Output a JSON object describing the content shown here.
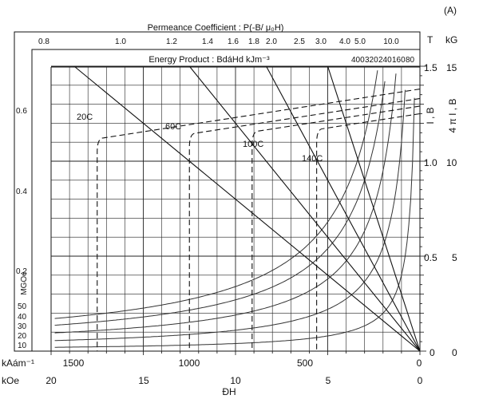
{
  "figure_label": "(A)",
  "chart_data": {
    "type": "line",
    "top_axis": {
      "title": "Permeance Coefficient : P(-B/ μ₀H)",
      "ticks": [
        "0.8",
        "1.0",
        "1.2",
        "1.4",
        "1.6",
        "1.8",
        "2.0",
        "2.5",
        "3.0",
        "4.0",
        "5.0",
        "10.0"
      ]
    },
    "energy_product": {
      "title": "Energy Product : BdáHd  kJm⁻³",
      "labels_top": [
        "400",
        "320",
        "240",
        "160",
        "80"
      ],
      "labels_left": [
        "50",
        "40",
        "30",
        "20",
        "10"
      ],
      "unit_vertical": "MGOe",
      "left_ticks": [
        "0.6",
        "0.4",
        "0.2"
      ]
    },
    "x_axis": {
      "label_kam": "kAám⁻¹",
      "label_koe": "kOe",
      "label_bottom": "ÐH",
      "ticks_kam": [
        "1500",
        "1000",
        "500",
        "0"
      ],
      "ticks_koe": [
        "20",
        "15",
        "10",
        "5",
        "0"
      ]
    },
    "y_axis": {
      "unit_T": "T",
      "unit_kG": "kG",
      "label_T": "I , B",
      "label_kG": "4 π I , B",
      "ticks_T": [
        "1.5",
        "1.0",
        "0.5",
        "0"
      ],
      "ticks_kG": [
        "15",
        "10",
        "5",
        "0"
      ]
    },
    "series": [
      {
        "name": "20C",
        "Hc_kOe": 17.5,
        "Br_T": 1.38
      },
      {
        "name": "60C",
        "Hc_kOe": 12.5,
        "Br_T": 1.33
      },
      {
        "name": "100C",
        "Hc_kOe": 9.1,
        "Br_T": 1.29
      },
      {
        "name": "140C",
        "Hc_kOe": 5.6,
        "Br_T": 1.25
      }
    ],
    "xlim_kOe": [
      20,
      0
    ],
    "ylim_T": [
      0,
      1.5
    ],
    "grid": true
  }
}
